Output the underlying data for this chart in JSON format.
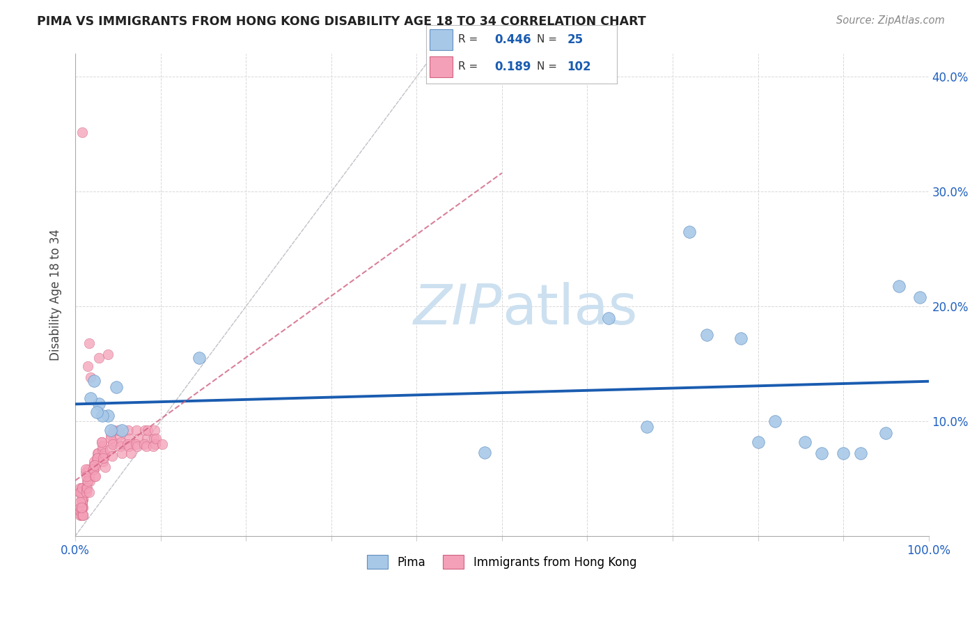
{
  "title": "PIMA VS IMMIGRANTS FROM HONG KONG DISABILITY AGE 18 TO 34 CORRELATION CHART",
  "source": "Source: ZipAtlas.com",
  "ylabel": "Disability Age 18 to 34",
  "xlim": [
    0,
    1.0
  ],
  "ylim": [
    0,
    0.42
  ],
  "xticks": [
    0.0,
    0.1,
    0.2,
    0.3,
    0.4,
    0.5,
    0.6,
    0.7,
    0.8,
    0.9,
    1.0
  ],
  "yticks": [
    0.0,
    0.1,
    0.2,
    0.3,
    0.4
  ],
  "blue_color": "#a8c8e8",
  "pink_color": "#f4a0b8",
  "blue_edge_color": "#6090c0",
  "pink_edge_color": "#d06080",
  "blue_line_color": "#1a5cb0",
  "pink_line_color": "#d06080",
  "grid_color": "#d8d8d8",
  "diag_color": "#c0c0c8",
  "watermark_color": "#cce0f0",
  "background": "#ffffff",
  "legend_R_blue": "0.446",
  "legend_N_blue": "25",
  "legend_R_pink": "0.189",
  "legend_N_pink": "102",
  "legend_label_blue": "Pima",
  "legend_label_pink": "Immigrants from Hong Kong",
  "blue_x": [
    0.022,
    0.028,
    0.018,
    0.038,
    0.032,
    0.048,
    0.055,
    0.042,
    0.025,
    0.145,
    0.48,
    0.625,
    0.67,
    0.72,
    0.74,
    0.78,
    0.8,
    0.82,
    0.855,
    0.875,
    0.9,
    0.92,
    0.95,
    0.965,
    0.99
  ],
  "blue_y": [
    0.135,
    0.115,
    0.12,
    0.105,
    0.105,
    0.13,
    0.092,
    0.092,
    0.108,
    0.155,
    0.073,
    0.19,
    0.095,
    0.265,
    0.175,
    0.172,
    0.082,
    0.1,
    0.082,
    0.072,
    0.072,
    0.072,
    0.09,
    0.218,
    0.208
  ],
  "pink_x": [
    0.005,
    0.007,
    0.008,
    0.006,
    0.009,
    0.007,
    0.006,
    0.008,
    0.007,
    0.006,
    0.008,
    0.009,
    0.007,
    0.006,
    0.008,
    0.007,
    0.009,
    0.006,
    0.008,
    0.007,
    0.009,
    0.008,
    0.007,
    0.006,
    0.009,
    0.007,
    0.008,
    0.006,
    0.009,
    0.007,
    0.012,
    0.014,
    0.016,
    0.013,
    0.015,
    0.017,
    0.013,
    0.016,
    0.014,
    0.012,
    0.015,
    0.016,
    0.013,
    0.022,
    0.024,
    0.026,
    0.021,
    0.023,
    0.025,
    0.022,
    0.027,
    0.021,
    0.024,
    0.026,
    0.023,
    0.032,
    0.034,
    0.031,
    0.033,
    0.035,
    0.032,
    0.034,
    0.031,
    0.033,
    0.042,
    0.044,
    0.041,
    0.043,
    0.045,
    0.042,
    0.044,
    0.052,
    0.054,
    0.051,
    0.053,
    0.055,
    0.062,
    0.064,
    0.061,
    0.063,
    0.065,
    0.072,
    0.074,
    0.071,
    0.073,
    0.082,
    0.084,
    0.081,
    0.083,
    0.085,
    0.092,
    0.094,
    0.091,
    0.093,
    0.095,
    0.102,
    0.028,
    0.038,
    0.016,
    0.008,
    0.015,
    0.018
  ],
  "pink_y": [
    0.038,
    0.042,
    0.028,
    0.022,
    0.032,
    0.038,
    0.018,
    0.042,
    0.025,
    0.022,
    0.018,
    0.032,
    0.038,
    0.025,
    0.03,
    0.018,
    0.025,
    0.042,
    0.03,
    0.038,
    0.018,
    0.025,
    0.032,
    0.038,
    0.018,
    0.025,
    0.042,
    0.03,
    0.018,
    0.025,
    0.055,
    0.048,
    0.052,
    0.042,
    0.058,
    0.048,
    0.038,
    0.052,
    0.042,
    0.058,
    0.048,
    0.038,
    0.052,
    0.065,
    0.06,
    0.072,
    0.058,
    0.052,
    0.068,
    0.062,
    0.072,
    0.058,
    0.052,
    0.068,
    0.062,
    0.075,
    0.07,
    0.082,
    0.065,
    0.06,
    0.078,
    0.072,
    0.082,
    0.068,
    0.088,
    0.082,
    0.075,
    0.07,
    0.092,
    0.085,
    0.08,
    0.088,
    0.082,
    0.092,
    0.078,
    0.072,
    0.092,
    0.085,
    0.08,
    0.078,
    0.072,
    0.092,
    0.085,
    0.08,
    0.078,
    0.092,
    0.085,
    0.08,
    0.078,
    0.092,
    0.085,
    0.08,
    0.078,
    0.092,
    0.085,
    0.08,
    0.155,
    0.158,
    0.168,
    0.352,
    0.148,
    0.138
  ],
  "blue_line_x0": 0.0,
  "blue_line_x1": 1.0,
  "pink_line_x0": 0.0,
  "pink_line_x1": 1.0
}
